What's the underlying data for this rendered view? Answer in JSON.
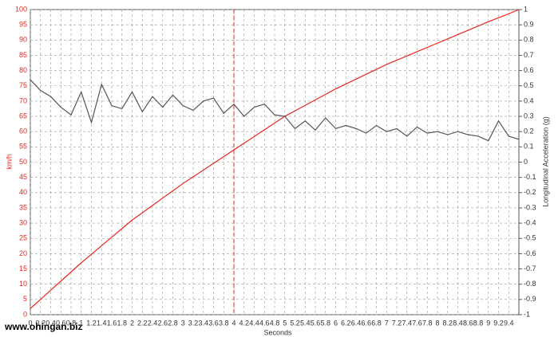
{
  "chart_data": {
    "type": "line",
    "x_label": "Seconds",
    "y_label": "km/h",
    "y2_label": "Longitudinal Acceleration (g)",
    "watermark": "www.ohingan.biz",
    "x": [
      0,
      0.2,
      0.4,
      0.6,
      0.8,
      1,
      1.2,
      1.4,
      1.6,
      1.8,
      2,
      2.2,
      2.4,
      2.6,
      2.8,
      3,
      3.2,
      3.4,
      3.6,
      3.8,
      4,
      4.2,
      4.4,
      4.6,
      4.8,
      5,
      5.2,
      5.4,
      5.6,
      5.8,
      6,
      6.2,
      6.4,
      6.6,
      6.8,
      7,
      7.2,
      7.4,
      7.6,
      7.8,
      8,
      8.2,
      8.4,
      8.6,
      8.8,
      9,
      9.2,
      9.4,
      9.6
    ],
    "series": [
      {
        "name": "km/h",
        "color": "#e8261e",
        "values": [
          2,
          5,
          8,
          11,
          14,
          17,
          19.8,
          22.6,
          25.4,
          28.2,
          31,
          33.4,
          35.8,
          38.2,
          40.6,
          43,
          45.2,
          47.4,
          49.6,
          51.8,
          54,
          56.2,
          58.4,
          60.6,
          62.8,
          65,
          66.8,
          68.6,
          70.4,
          72.2,
          74,
          75.6,
          77.2,
          78.8,
          80.4,
          82,
          83.4,
          84.8,
          86.2,
          87.6,
          89,
          90.4,
          91.8,
          93.2,
          94.6,
          96,
          97.3,
          98.6,
          100
        ]
      },
      {
        "name": "Longitudinal Acceleration (g)",
        "color": "#555555",
        "axis": "y2",
        "values": [
          0.54,
          0.47,
          0.43,
          0.36,
          0.31,
          0.46,
          0.26,
          0.51,
          0.37,
          0.35,
          0.46,
          0.33,
          0.43,
          0.36,
          0.44,
          0.37,
          0.34,
          0.4,
          0.42,
          0.32,
          0.38,
          0.3,
          0.36,
          0.38,
          0.31,
          0.3,
          0.22,
          0.27,
          0.21,
          0.29,
          0.22,
          0.24,
          0.22,
          0.19,
          0.24,
          0.2,
          0.22,
          0.17,
          0.23,
          0.19,
          0.2,
          0.18,
          0.2,
          0.18,
          0.17,
          0.14,
          0.27,
          0.17,
          0.15
        ]
      }
    ],
    "marker_x": 4,
    "xlim": [
      0,
      9.6
    ],
    "xticks": [
      0,
      0.2,
      0.4,
      0.6,
      0.8,
      1,
      1.2,
      1.4,
      1.6,
      1.8,
      2,
      2.2,
      2.4,
      2.6,
      2.8,
      3,
      3.2,
      3.4,
      3.6,
      3.8,
      4,
      4.2,
      4.4,
      4.6,
      4.8,
      5,
      5.2,
      5.4,
      5.6,
      5.8,
      6,
      6.2,
      6.4,
      6.6,
      6.8,
      7,
      7.2,
      7.4,
      7.6,
      7.8,
      8,
      8.2,
      8.4,
      8.6,
      8.8,
      9,
      9.2,
      9.4
    ],
    "ylim": [
      0,
      100
    ],
    "yticks": [
      0,
      5,
      10,
      15,
      20,
      25,
      30,
      35,
      40,
      45,
      50,
      55,
      60,
      65,
      70,
      75,
      80,
      85,
      90,
      95,
      100
    ],
    "y2lim": [
      -1,
      1
    ],
    "y2ticks": [
      -1,
      -0.9,
      -0.8,
      -0.7,
      -0.6,
      -0.5,
      -0.4,
      -0.3,
      -0.2,
      -0.1,
      0,
      0.1,
      0.2,
      0.3,
      0.4,
      0.5,
      0.6,
      0.7,
      0.8,
      0.9,
      1
    ],
    "grid": true
  }
}
